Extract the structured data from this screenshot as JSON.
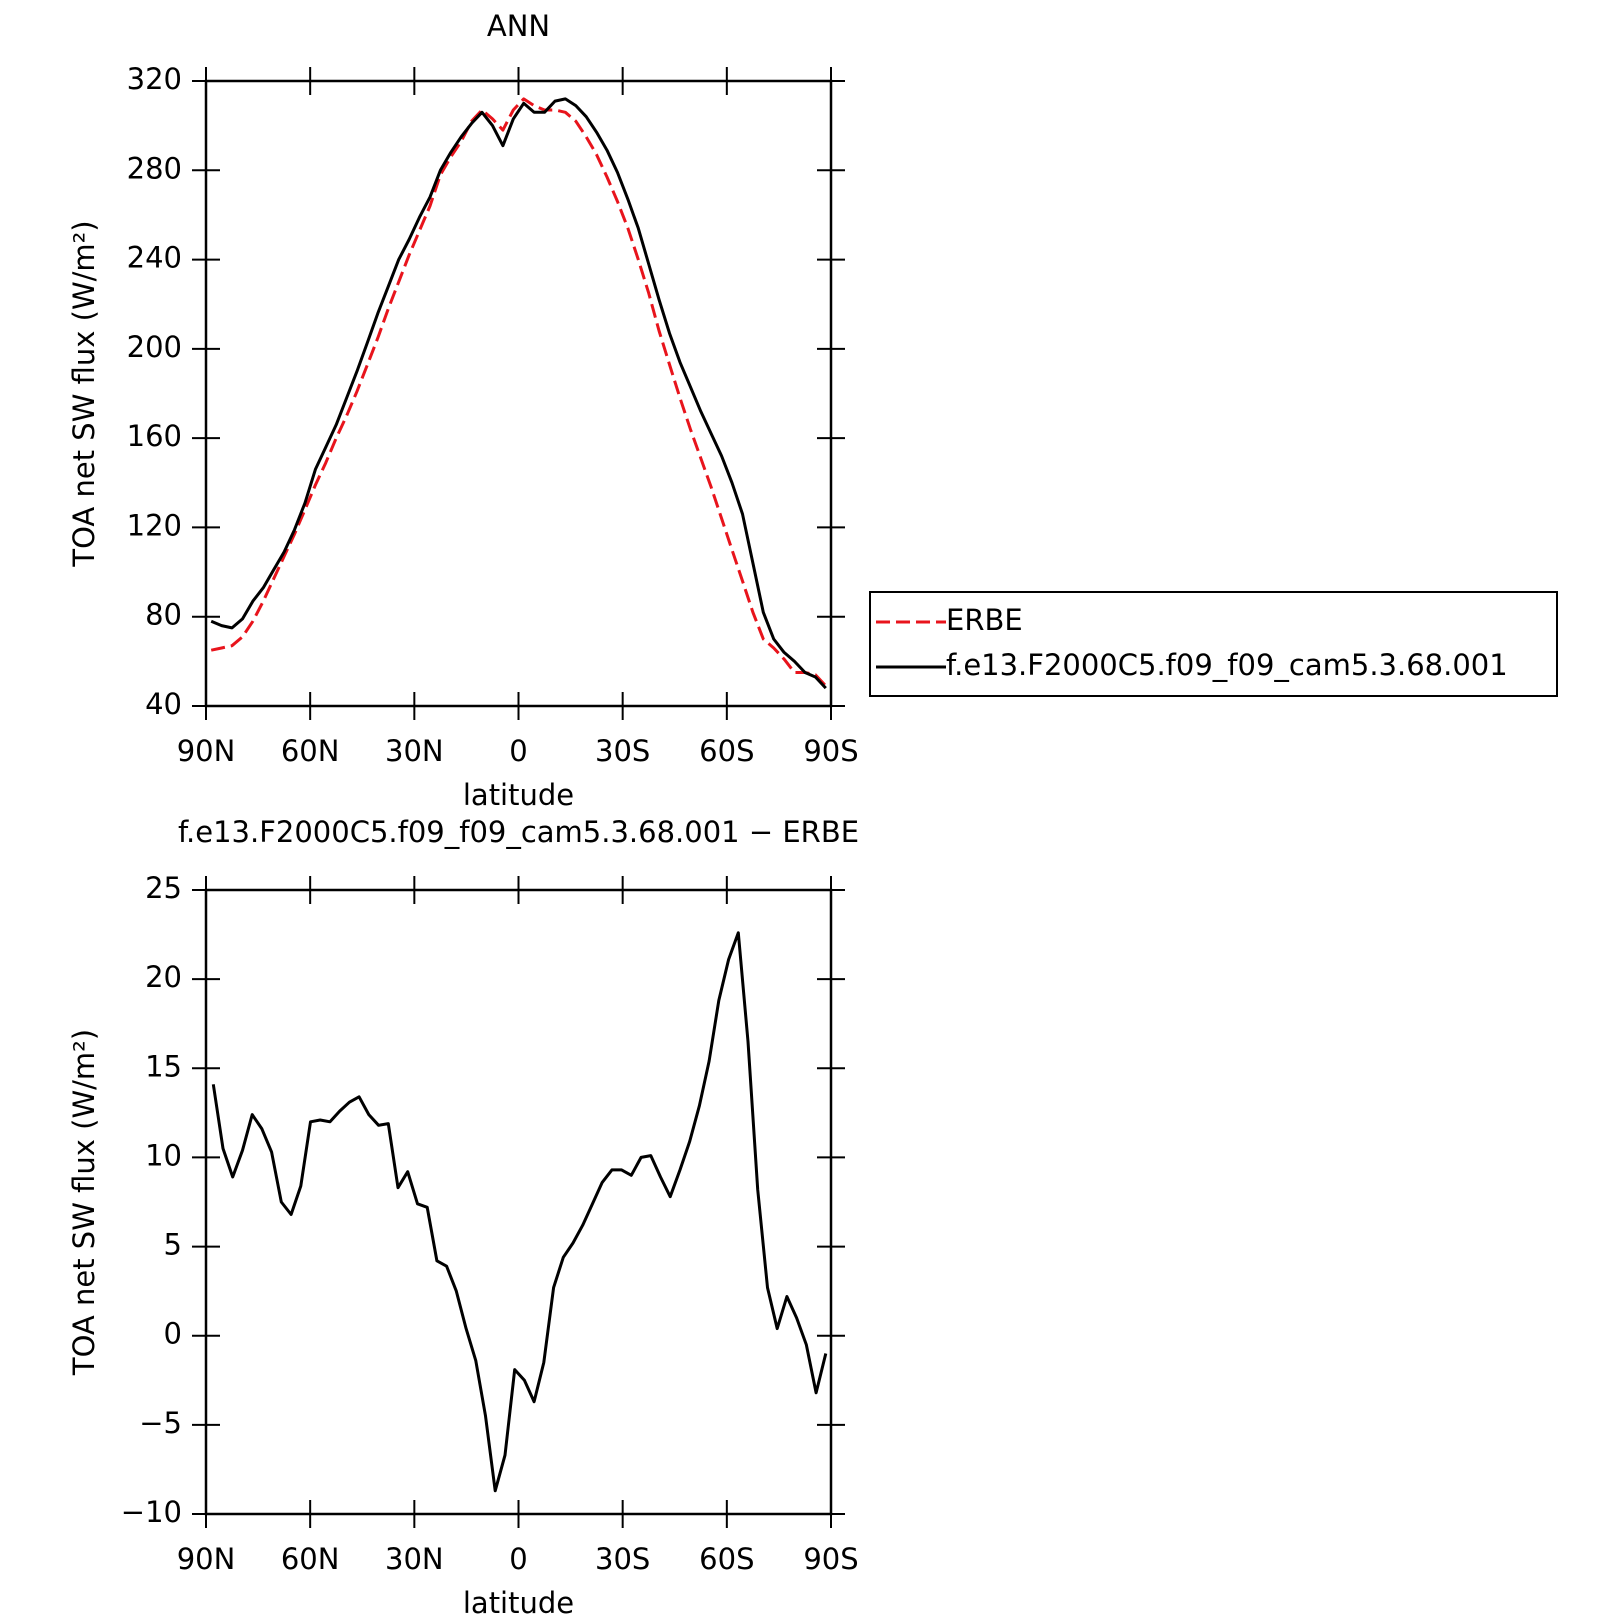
{
  "chart_data": [
    {
      "type": "line",
      "title": "ANN",
      "x_label": "latitude",
      "y_label": "TOA net SW flux (W/m²)",
      "xlim": [
        90,
        -90
      ],
      "xticks": [
        {
          "value": 90,
          "label": "90N"
        },
        {
          "value": 60,
          "label": "60N"
        },
        {
          "value": 30,
          "label": "30N"
        },
        0,
        {
          "value": -30,
          "label": "30S"
        },
        {
          "value": -60,
          "label": "60S"
        },
        {
          "value": -90,
          "label": "90S"
        }
      ],
      "ylim": [
        40,
        320
      ],
      "yticks": [
        40,
        80,
        120,
        160,
        200,
        240,
        280,
        320
      ],
      "legend": "right",
      "x": [
        88.5,
        85.5,
        82.5,
        79.5,
        76.5,
        73.5,
        70.5,
        67.5,
        64.5,
        61.5,
        58.5,
        55.5,
        52.5,
        49.5,
        46.5,
        43.5,
        40.5,
        37.5,
        34.5,
        31.5,
        28.5,
        25.5,
        22.5,
        19.5,
        16.5,
        13.5,
        10.5,
        7.5,
        4.5,
        1.5,
        -1.5,
        -4.5,
        -7.5,
        -10.5,
        -13.5,
        -16.5,
        -19.5,
        -22.5,
        -25.5,
        -28.5,
        -31.5,
        -34.5,
        -37.5,
        -40.5,
        -43.5,
        -46.5,
        -49.5,
        -52.5,
        -55.5,
        -58.5,
        -61.5,
        -64.5,
        -67.5,
        -70.5,
        -73.5,
        -76.5,
        -79.5,
        -82.5,
        -85.5,
        -88.5
      ],
      "series": [
        {
          "name": "ERBE",
          "color": "#e8141c",
          "dash": "dashed",
          "values": [
            65,
            66,
            67,
            71,
            78,
            87,
            97,
            107,
            117,
            128,
            139,
            149,
            160,
            170,
            181,
            193,
            205,
            218,
            230,
            242,
            253,
            264,
            278,
            286,
            293,
            302,
            307,
            303,
            298,
            307,
            312,
            309,
            307,
            307,
            306,
            302,
            295,
            287,
            277,
            266,
            254,
            240,
            225,
            208,
            193,
            178,
            164,
            151,
            138,
            124,
            110,
            96,
            82,
            70,
            66,
            61,
            55,
            55,
            54,
            49
          ]
        },
        {
          "name": "f.e13.F2000C5.f09_f09_cam5.3.68.001",
          "color": "#000000",
          "dash": "solid",
          "values": [
            78,
            76,
            75,
            79,
            87,
            93,
            101,
            109,
            119,
            131,
            146,
            156,
            166,
            178,
            190,
            203,
            216,
            228,
            240,
            249,
            259,
            268,
            280,
            288,
            295,
            301,
            306,
            300,
            291,
            303,
            310,
            306,
            306,
            311,
            312,
            309,
            304,
            297,
            289,
            279,
            267,
            254,
            238,
            222,
            207,
            194,
            183,
            172,
            162,
            152,
            140,
            126,
            104,
            82,
            70,
            64,
            60,
            55,
            53,
            48
          ]
        }
      ]
    },
    {
      "type": "line",
      "title": "f.e13.F2000C5.f09_f09_cam5.3.68.001 − ERBE",
      "x_label": "latitude",
      "y_label": "TOA net SW flux (W/m²)",
      "xlim": [
        90,
        -90
      ],
      "xticks": [
        {
          "value": 90,
          "label": "90N"
        },
        {
          "value": 60,
          "label": "60N"
        },
        {
          "value": 30,
          "label": "30N"
        },
        0,
        {
          "value": -30,
          "label": "30S"
        },
        {
          "value": -60,
          "label": "60S"
        },
        {
          "value": -90,
          "label": "90S"
        }
      ],
      "ylim": [
        -10,
        25
      ],
      "yticks": [
        {
          "value": -10,
          "label": "−10"
        },
        {
          "value": -5,
          "label": "−5"
        },
        0,
        5,
        10,
        15,
        20,
        25
      ],
      "x": [
        87.9,
        85.1,
        82.3,
        79.5,
        76.7,
        73.9,
        71.1,
        68.3,
        65.5,
        62.7,
        59.9,
        57.1,
        54.3,
        51.5,
        48.7,
        45.9,
        43.1,
        40.3,
        37.5,
        34.7,
        31.9,
        29.1,
        26.3,
        23.5,
        20.7,
        17.9,
        15.1,
        12.3,
        9.5,
        6.7,
        3.9,
        1.1,
        -1.7,
        -4.5,
        -7.3,
        -10.1,
        -12.9,
        -15.7,
        -18.5,
        -21.3,
        -24.1,
        -26.9,
        -29.7,
        -32.5,
        -35.3,
        -38.1,
        -40.9,
        -43.7,
        -46.5,
        -49.3,
        -52.1,
        -54.9,
        -57.7,
        -60.5,
        -63.3,
        -66.1,
        -68.9,
        -71.7,
        -74.5,
        -77.3,
        -80.1,
        -82.9,
        -85.7,
        -88.5
      ],
      "series": [
        {
          "color": "#000000",
          "dash": "solid",
          "values": [
            14.1,
            10.5,
            8.9,
            10.4,
            12.4,
            11.6,
            10.3,
            7.5,
            6.8,
            8.4,
            12.0,
            12.1,
            12.0,
            12.6,
            13.1,
            13.4,
            12.4,
            11.8,
            11.9,
            8.3,
            9.2,
            7.4,
            7.2,
            4.2,
            3.9,
            2.5,
            0.4,
            -1.4,
            -4.5,
            -8.7,
            -6.7,
            -1.9,
            -2.5,
            -3.7,
            -1.5,
            2.7,
            4.4,
            5.2,
            6.2,
            7.4,
            8.6,
            9.3,
            9.3,
            9.0,
            10.0,
            10.1,
            8.9,
            7.8,
            9.3,
            10.9,
            12.9,
            15.4,
            18.8,
            21.1,
            22.6,
            16.5,
            8.2,
            2.7,
            0.4,
            2.2,
            1.0,
            -0.5,
            -3.2,
            -1.0
          ]
        }
      ]
    }
  ]
}
